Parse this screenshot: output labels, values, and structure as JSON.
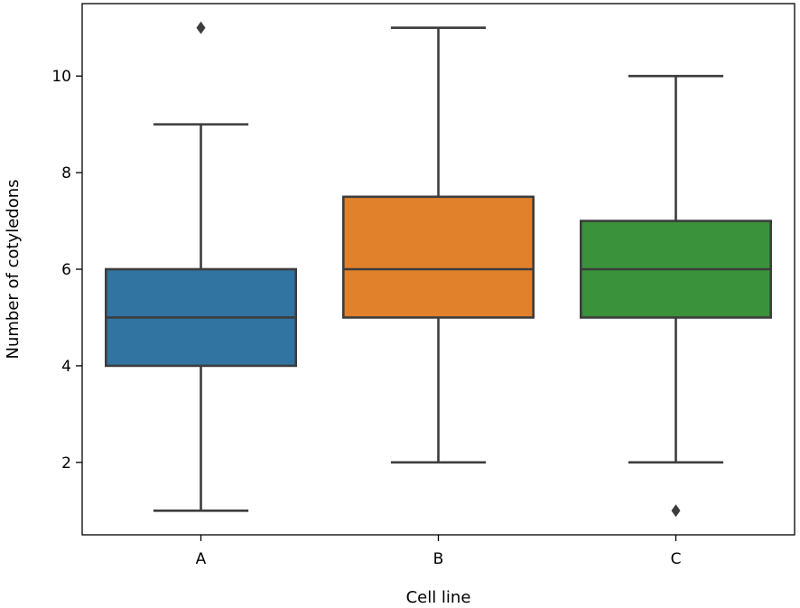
{
  "chart_data": {
    "type": "box",
    "title": "",
    "xlabel": "Cell line",
    "ylabel": "Number of cotyledons",
    "ylim": [
      0.5,
      11.5
    ],
    "yticks": [
      2,
      4,
      6,
      8,
      10
    ],
    "ytick_labels": [
      "2",
      "4",
      "6",
      "8",
      "10"
    ],
    "grid": false,
    "legend": "none",
    "categories": [
      "A",
      "B",
      "C"
    ],
    "boxes": [
      {
        "category": "A",
        "whisker_low": 1,
        "q1": 4,
        "median": 5,
        "q3": 6,
        "whisker_high": 9,
        "outliers": [
          11
        ],
        "color": "#3274a1"
      },
      {
        "category": "B",
        "whisker_low": 2,
        "q1": 5,
        "median": 6,
        "q3": 7.5,
        "whisker_high": 11,
        "outliers": [],
        "color": "#e1812c"
      },
      {
        "category": "C",
        "whisker_low": 2,
        "q1": 5,
        "median": 6,
        "q3": 7,
        "whisker_high": 10,
        "outliers": [
          1
        ],
        "color": "#3a923a"
      }
    ],
    "line_color": "#3d3d3d"
  }
}
